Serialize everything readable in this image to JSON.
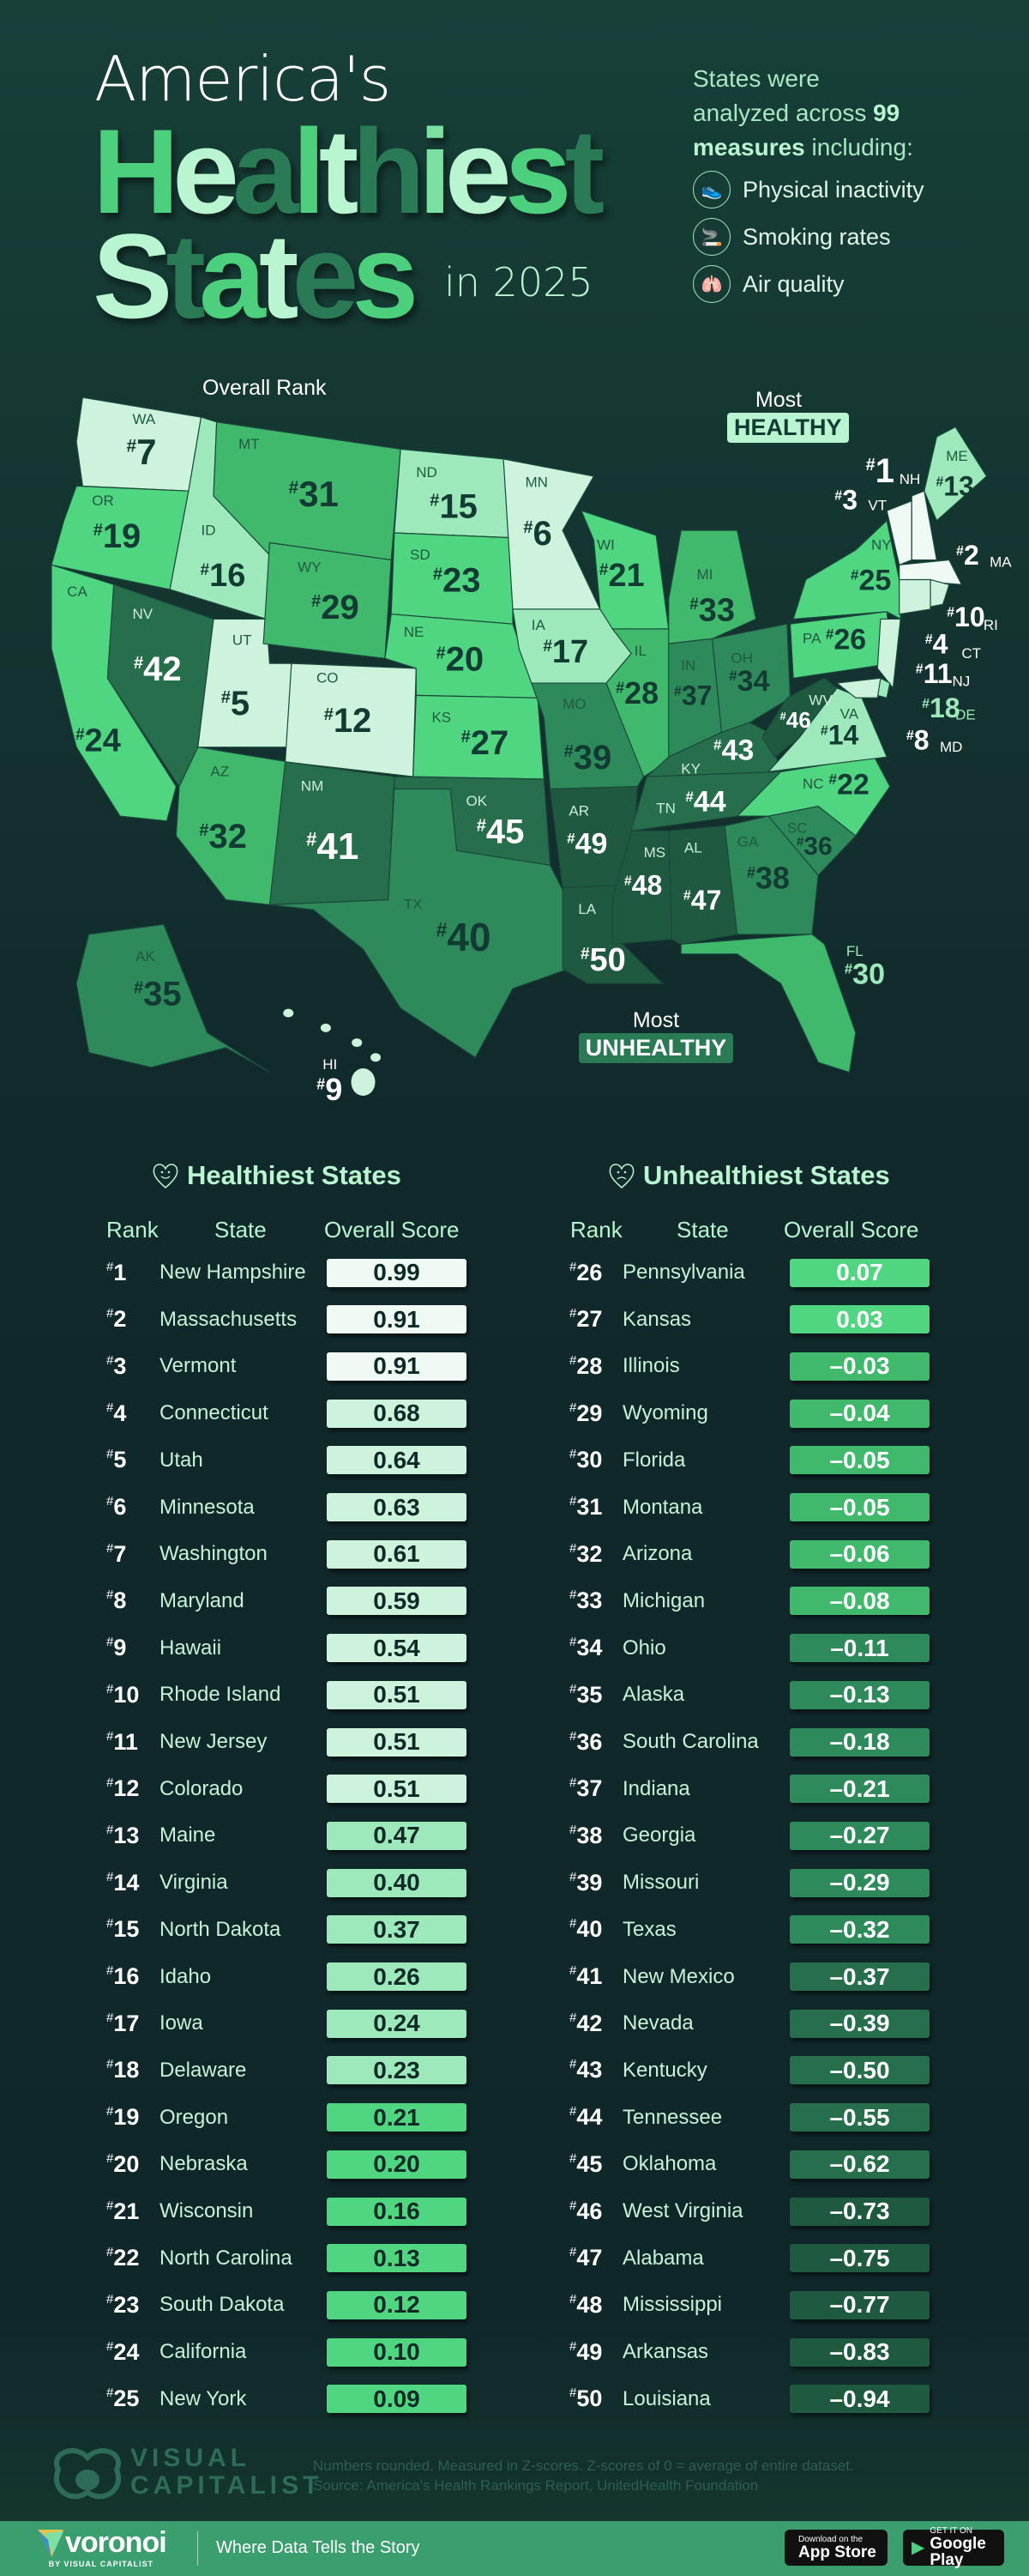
{
  "header": {
    "title_line1": "America's",
    "title_word1_letters": [
      "H",
      "e",
      "a",
      "l",
      "t",
      "h",
      "i",
      "e",
      "s",
      "t"
    ],
    "title_word2_letters": [
      "S",
      "t",
      "a",
      "t",
      "e",
      "s"
    ],
    "title_year": "in 2025",
    "intro_line1": "States were",
    "intro_line2_pre": "analyzed across ",
    "intro_line2_bold": "99",
    "intro_line3_bold": "measures",
    "intro_line3_post": " including:",
    "measures": [
      {
        "icon": "shoe-icon",
        "label": "Physical inactivity"
      },
      {
        "icon": "cigarette-icon",
        "label": "Smoking rates"
      },
      {
        "icon": "lungs-icon",
        "label": "Air quality"
      }
    ]
  },
  "colors": {
    "title_letters_1": [
      "#4cd07d",
      "#b8f5d0",
      "#2a7a55",
      "#4cd07d",
      "#b8f5d0",
      "#2a7a55",
      "#7de0a3",
      "#b8f5d0",
      "#4cd07d",
      "#2a7a55"
    ],
    "title_letters_2": [
      "#b8f5d0",
      "#2a7a55",
      "#4cd07d",
      "#b8f5d0",
      "#2a7a55",
      "#4cd07d"
    ],
    "rank_scale": [
      {
        "max_rank": 3,
        "color": "#eefaf3"
      },
      {
        "max_rank": 12,
        "color": "#cdf3dc"
      },
      {
        "max_rank": 18,
        "color": "#9ee9bb"
      },
      {
        "max_rank": 27,
        "color": "#50d580"
      },
      {
        "max_rank": 33,
        "color": "#40b96c"
      },
      {
        "max_rank": 40,
        "color": "#2f8a5b"
      },
      {
        "max_rank": 45,
        "color": "#276e4c"
      },
      {
        "max_rank": 50,
        "color": "#1f5a40"
      }
    ],
    "accent": "#4cd07d",
    "footer_band": "#3a9e6f"
  },
  "map": {
    "annotation_overall_rank": "Overall Rank",
    "annotation_most": "Most",
    "annotation_healthy": "HEALTHY",
    "annotation_unhealthy": "UNHEALTHY",
    "states": [
      {
        "abbr": "WA",
        "rank": 7
      },
      {
        "abbr": "OR",
        "rank": 19
      },
      {
        "abbr": "CA",
        "rank": 24
      },
      {
        "abbr": "ID",
        "rank": 16
      },
      {
        "abbr": "NV",
        "rank": 42
      },
      {
        "abbr": "UT",
        "rank": 5
      },
      {
        "abbr": "AZ",
        "rank": 32
      },
      {
        "abbr": "MT",
        "rank": 31
      },
      {
        "abbr": "WY",
        "rank": 29
      },
      {
        "abbr": "CO",
        "rank": 12
      },
      {
        "abbr": "NM",
        "rank": 41
      },
      {
        "abbr": "ND",
        "rank": 15
      },
      {
        "abbr": "SD",
        "rank": 23
      },
      {
        "abbr": "NE",
        "rank": 20
      },
      {
        "abbr": "KS",
        "rank": 27
      },
      {
        "abbr": "OK",
        "rank": 45
      },
      {
        "abbr": "TX",
        "rank": 40
      },
      {
        "abbr": "MN",
        "rank": 6
      },
      {
        "abbr": "IA",
        "rank": 17
      },
      {
        "abbr": "MO",
        "rank": 39
      },
      {
        "abbr": "AR",
        "rank": 49
      },
      {
        "abbr": "LA",
        "rank": 50
      },
      {
        "abbr": "WI",
        "rank": 21
      },
      {
        "abbr": "IL",
        "rank": 28
      },
      {
        "abbr": "MI",
        "rank": 33
      },
      {
        "abbr": "IN",
        "rank": 37
      },
      {
        "abbr": "OH",
        "rank": 34
      },
      {
        "abbr": "KY",
        "rank": 43
      },
      {
        "abbr": "TN",
        "rank": 44
      },
      {
        "abbr": "MS",
        "rank": 48
      },
      {
        "abbr": "AL",
        "rank": 47
      },
      {
        "abbr": "GA",
        "rank": 38
      },
      {
        "abbr": "SC",
        "rank": 36
      },
      {
        "abbr": "NC",
        "rank": 22
      },
      {
        "abbr": "VA",
        "rank": 14
      },
      {
        "abbr": "WV",
        "rank": 46
      },
      {
        "abbr": "FL",
        "rank": 30
      },
      {
        "abbr": "PA",
        "rank": 26
      },
      {
        "abbr": "NY",
        "rank": 25
      },
      {
        "abbr": "NJ",
        "rank": 11
      },
      {
        "abbr": "DE",
        "rank": 18
      },
      {
        "abbr": "MD",
        "rank": 8
      },
      {
        "abbr": "VT",
        "rank": 3
      },
      {
        "abbr": "NH",
        "rank": 1
      },
      {
        "abbr": "ME",
        "rank": 13
      },
      {
        "abbr": "MA",
        "rank": 2
      },
      {
        "abbr": "CT",
        "rank": 4
      },
      {
        "abbr": "RI",
        "rank": 10
      },
      {
        "abbr": "AK",
        "rank": 35
      },
      {
        "abbr": "HI",
        "rank": 9
      }
    ]
  },
  "tables": {
    "healthiest_title": "Healthiest States",
    "unhealthiest_title": "Unhealthiest States",
    "col_rank": "Rank",
    "col_state": "State",
    "col_score": "Overall Score",
    "healthiest": [
      {
        "rank": "1",
        "state": "New Hampshire",
        "score": "0.99"
      },
      {
        "rank": "2",
        "state": "Massachusetts",
        "score": "0.91"
      },
      {
        "rank": "3",
        "state": "Vermont",
        "score": "0.91"
      },
      {
        "rank": "4",
        "state": "Connecticut",
        "score": "0.68"
      },
      {
        "rank": "5",
        "state": "Utah",
        "score": "0.64"
      },
      {
        "rank": "6",
        "state": "Minnesota",
        "score": "0.63"
      },
      {
        "rank": "7",
        "state": "Washington",
        "score": "0.61"
      },
      {
        "rank": "8",
        "state": "Maryland",
        "score": "0.59"
      },
      {
        "rank": "9",
        "state": "Hawaii",
        "score": "0.54"
      },
      {
        "rank": "10",
        "state": "Rhode Island",
        "score": "0.51"
      },
      {
        "rank": "11",
        "state": "New Jersey",
        "score": "0.51"
      },
      {
        "rank": "12",
        "state": "Colorado",
        "score": "0.51"
      },
      {
        "rank": "13",
        "state": "Maine",
        "score": "0.47"
      },
      {
        "rank": "14",
        "state": "Virginia",
        "score": "0.40"
      },
      {
        "rank": "15",
        "state": "North Dakota",
        "score": "0.37"
      },
      {
        "rank": "16",
        "state": "Idaho",
        "score": "0.26"
      },
      {
        "rank": "17",
        "state": "Iowa",
        "score": "0.24"
      },
      {
        "rank": "18",
        "state": "Delaware",
        "score": "0.23"
      },
      {
        "rank": "19",
        "state": "Oregon",
        "score": "0.21"
      },
      {
        "rank": "20",
        "state": "Nebraska",
        "score": "0.20"
      },
      {
        "rank": "21",
        "state": "Wisconsin",
        "score": "0.16"
      },
      {
        "rank": "22",
        "state": "North Carolina",
        "score": "0.13"
      },
      {
        "rank": "23",
        "state": "South Dakota",
        "score": "0.12"
      },
      {
        "rank": "24",
        "state": "California",
        "score": "0.10"
      },
      {
        "rank": "25",
        "state": "New York",
        "score": "0.09"
      }
    ],
    "unhealthiest": [
      {
        "rank": "26",
        "state": "Pennsylvania",
        "score": "0.07"
      },
      {
        "rank": "27",
        "state": "Kansas",
        "score": "0.03"
      },
      {
        "rank": "28",
        "state": "Illinois",
        "score": "–0.03"
      },
      {
        "rank": "29",
        "state": "Wyoming",
        "score": "–0.04"
      },
      {
        "rank": "30",
        "state": "Florida",
        "score": "–0.05"
      },
      {
        "rank": "31",
        "state": "Montana",
        "score": "–0.05"
      },
      {
        "rank": "32",
        "state": "Arizona",
        "score": "–0.06"
      },
      {
        "rank": "33",
        "state": "Michigan",
        "score": "–0.08"
      },
      {
        "rank": "34",
        "state": "Ohio",
        "score": "–0.11"
      },
      {
        "rank": "35",
        "state": "Alaska",
        "score": "–0.13"
      },
      {
        "rank": "36",
        "state": "South Carolina",
        "score": "–0.18"
      },
      {
        "rank": "37",
        "state": "Indiana",
        "score": "–0.21"
      },
      {
        "rank": "38",
        "state": "Georgia",
        "score": "–0.27"
      },
      {
        "rank": "39",
        "state": "Missouri",
        "score": "–0.29"
      },
      {
        "rank": "40",
        "state": "Texas",
        "score": "–0.32"
      },
      {
        "rank": "41",
        "state": "New Mexico",
        "score": "–0.37"
      },
      {
        "rank": "42",
        "state": "Nevada",
        "score": "–0.39"
      },
      {
        "rank": "43",
        "state": "Kentucky",
        "score": "–0.50"
      },
      {
        "rank": "44",
        "state": "Tennessee",
        "score": "–0.55"
      },
      {
        "rank": "45",
        "state": "Oklahoma",
        "score": "–0.62"
      },
      {
        "rank": "46",
        "state": "West Virginia",
        "score": "–0.73"
      },
      {
        "rank": "47",
        "state": "Alabama",
        "score": "–0.75"
      },
      {
        "rank": "48",
        "state": "Mississippi",
        "score": "–0.77"
      },
      {
        "rank": "49",
        "state": "Arkansas",
        "score": "–0.83"
      },
      {
        "rank": "50",
        "state": "Louisiana",
        "score": "–0.94"
      }
    ]
  },
  "chart_data": {
    "type": "table",
    "title": "America's Healthiest States in 2025",
    "columns": [
      "Rank",
      "State",
      "Overall Score"
    ],
    "note": "Numbers rounded. Measured in Z-scores. Z-scores of 0 = average of entire dataset."
  },
  "footer": {
    "brand_line1": "VISUAL",
    "brand_line2": "CAPITALIST",
    "note": "Numbers rounded. Measured in Z-scores. Z-scores of 0 = average of entire dataset.",
    "source": "Source: America's Health Rankings Report, UnitedHealth Foundation",
    "voronoi": "voronoi",
    "voronoi_sub": "BY VISUAL CAPITALIST",
    "tagline": "Where Data Tells the Story",
    "appstore_small": "Download on the",
    "appstore_big": "App Store",
    "googleplay_small": "GET IT ON",
    "googleplay_big": "Google Play"
  }
}
